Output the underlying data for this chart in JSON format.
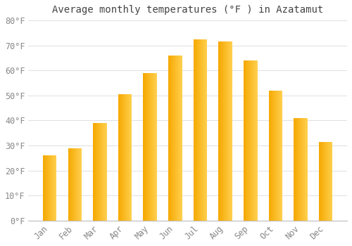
{
  "title": "Average monthly temperatures (°F ) in Azatamut",
  "months": [
    "Jan",
    "Feb",
    "Mar",
    "Apr",
    "May",
    "Jun",
    "Jul",
    "Aug",
    "Sep",
    "Oct",
    "Nov",
    "Dec"
  ],
  "values": [
    26,
    29,
    39,
    50.5,
    59,
    66,
    72.5,
    71.5,
    64,
    52,
    41,
    31.5
  ],
  "bar_color_left": "#F5A800",
  "bar_color_right": "#FFD050",
  "ylim": [
    0,
    80
  ],
  "ytick_step": 10,
  "background_color": "#FFFFFF",
  "plot_bg_color": "#FFFFFF",
  "grid_color": "#E0E0E0",
  "title_fontsize": 10,
  "tick_fontsize": 8.5,
  "tick_color": "#888888",
  "title_color": "#444444",
  "bar_width": 0.55
}
